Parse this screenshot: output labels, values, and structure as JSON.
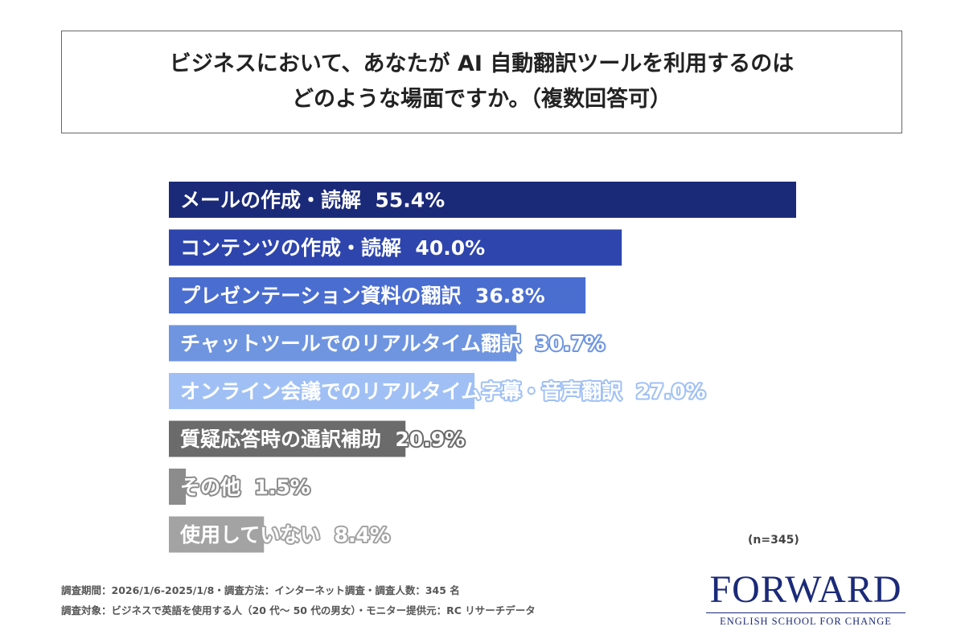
{
  "chart_data": {
    "type": "bar",
    "orientation": "horizontal",
    "title_lines": [
      "ビジネスにおいて、あなたが AI 自動翻訳ツールを利用するのは",
      "どのような場面ですか。（複数回答可）"
    ],
    "categories": [
      "メールの作成・読解",
      "コンテンツの作成・読解",
      "プレゼンテーション資料の翻訳",
      "チャットツールでのリアルタイム翻訳",
      "オンライン会議でのリアルタイム字幕・音声翻訳",
      "質疑応答時の通訳補助",
      "その他",
      "使用していない"
    ],
    "values": [
      55.4,
      40.0,
      36.8,
      30.7,
      27.0,
      20.9,
      1.5,
      8.4
    ],
    "value_labels": [
      "55.4%",
      "40.0%",
      "36.8%",
      "30.7%",
      "27.0%",
      "20.9%",
      "1.5%",
      "8.4%"
    ],
    "colors": [
      "#1b2a78",
      "#2e45ad",
      "#4a6dd0",
      "#6f95e0",
      "#a0c0f5",
      "#6b6b6b",
      "#8c8c8c",
      "#a3a3a3"
    ],
    "unit": "%",
    "grid": false,
    "note": "(n=345)"
  },
  "footnotes": [
    "調査期間：2026/1/6-2025/1/8・調査方法：インターネット調査・調査人数：345 名",
    "調査対象：ビジネスで英語を使用する人（20 代～ 50 代の男女）・モニター提供元：RC リサーチデータ"
  ],
  "logo": {
    "main": "FORWARD",
    "sub": "ENGLISH SCHOOL FOR CHANGE"
  }
}
